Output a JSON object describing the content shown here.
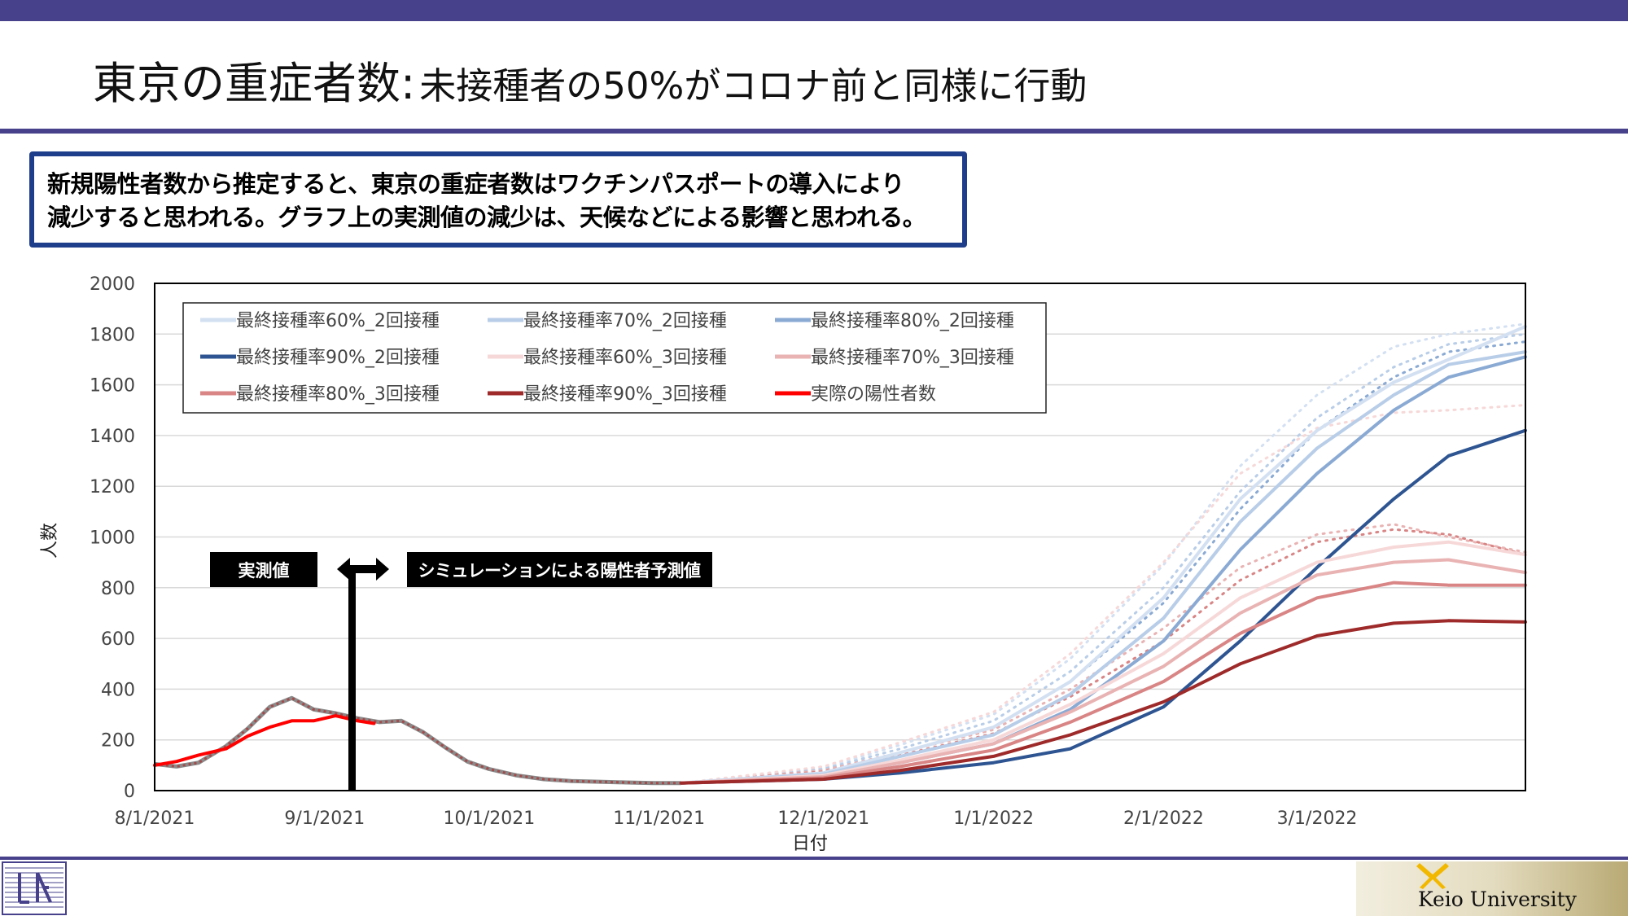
{
  "slide": {
    "title_main": "東京の重症者数:",
    "title_sub": "未接種者の50%がコロナ前と同様に行動",
    "callout_line1": "新規陽性者数から推定すると、東京の重症者数はワクチンパスポートの導入により",
    "callout_line2": "減少すると思われる。グラフ上の実測値の減少は、天候などによる影響と思われる。",
    "label_measured": "実測値",
    "label_simulated": "シミュレーションによる陽性者予測値",
    "footer_brand": "Keio University"
  },
  "colors": {
    "band": "#46418a",
    "callout_border": "#1e3d8a",
    "actual": "#ff0000"
  },
  "chart_data": {
    "type": "line",
    "title": "",
    "xlabel": "日付",
    "ylabel": "人数",
    "ylim": [
      0,
      2000
    ],
    "yticks": [
      0,
      200,
      400,
      600,
      800,
      1000,
      1200,
      1400,
      1600,
      1800,
      2000
    ],
    "xlim": [
      "2021-08-01",
      "2022-04-08"
    ],
    "xticks": [
      {
        "date": "2021-08-01",
        "label": "8/1/2021"
      },
      {
        "date": "2021-09-01",
        "label": "9/1/2021"
      },
      {
        "date": "2021-10-01",
        "label": "10/1/2021"
      },
      {
        "date": "2021-11-01",
        "label": "11/1/2021"
      },
      {
        "date": "2021-12-01",
        "label": "12/1/2021"
      },
      {
        "date": "2022-01-01",
        "label": "1/1/2022"
      },
      {
        "date": "2022-02-01",
        "label": "2/1/2022"
      },
      {
        "date": "2022-03-01",
        "label": "3/1/2022"
      }
    ],
    "grid": true,
    "legend_position": "top-left",
    "divider_date": "2021-09-06",
    "history": [
      [
        "2021-08-01",
        105
      ],
      [
        "2021-08-05",
        95
      ],
      [
        "2021-08-09",
        110
      ],
      [
        "2021-08-14",
        175
      ],
      [
        "2021-08-18",
        245
      ],
      [
        "2021-08-22",
        330
      ],
      [
        "2021-08-26",
        365
      ],
      [
        "2021-08-30",
        320
      ],
      [
        "2021-09-03",
        305
      ],
      [
        "2021-09-07",
        285
      ],
      [
        "2021-09-11",
        270
      ],
      [
        "2021-09-15",
        275
      ],
      [
        "2021-09-19",
        230
      ],
      [
        "2021-09-23",
        170
      ],
      [
        "2021-09-27",
        115
      ],
      [
        "2021-10-01",
        85
      ],
      [
        "2021-10-06",
        60
      ],
      [
        "2021-10-11",
        45
      ],
      [
        "2021-10-16",
        38
      ],
      [
        "2021-10-21",
        35
      ],
      [
        "2021-10-26",
        32
      ],
      [
        "2021-10-31",
        30
      ],
      [
        "2021-11-05",
        30
      ]
    ],
    "series": [
      {
        "name": "実際の陽性者数",
        "color": "#ff0000",
        "style": "solid",
        "width": 4,
        "points": [
          [
            "2021-08-01",
            100
          ],
          [
            "2021-08-05",
            115
          ],
          [
            "2021-08-09",
            140
          ],
          [
            "2021-08-14",
            165
          ],
          [
            "2021-08-18",
            215
          ],
          [
            "2021-08-22",
            250
          ],
          [
            "2021-08-26",
            275
          ],
          [
            "2021-08-30",
            275
          ],
          [
            "2021-09-03",
            295
          ],
          [
            "2021-09-07",
            275
          ],
          [
            "2021-09-10",
            265
          ]
        ]
      },
      {
        "name": "最終接種率60%_2回接種",
        "color": "#d3e0f2",
        "style": "solid",
        "width": 4,
        "points": [
          [
            "2021-12-01",
            70
          ],
          [
            "2021-12-15",
            150
          ],
          [
            "2022-01-01",
            250
          ],
          [
            "2022-01-15",
            430
          ],
          [
            "2022-02-01",
            760
          ],
          [
            "2022-02-15",
            1150
          ],
          [
            "2022-03-01",
            1420
          ],
          [
            "2022-03-15",
            1610
          ],
          [
            "2022-03-25",
            1700
          ],
          [
            "2022-04-08",
            1830
          ]
        ]
      },
      {
        "name": "最終接種率70%_2回接種",
        "color": "#b8cde8",
        "style": "solid",
        "width": 4,
        "points": [
          [
            "2021-12-01",
            65
          ],
          [
            "2021-12-15",
            135
          ],
          [
            "2022-01-01",
            220
          ],
          [
            "2022-01-15",
            380
          ],
          [
            "2022-02-01",
            680
          ],
          [
            "2022-02-15",
            1060
          ],
          [
            "2022-03-01",
            1350
          ],
          [
            "2022-03-15",
            1560
          ],
          [
            "2022-03-25",
            1680
          ],
          [
            "2022-04-08",
            1730
          ]
        ]
      },
      {
        "name": "最終接種率80%_2回接種",
        "color": "#8aaad4",
        "style": "solid",
        "width": 4,
        "points": [
          [
            "2021-12-01",
            55
          ],
          [
            "2021-12-15",
            110
          ],
          [
            "2022-01-01",
            185
          ],
          [
            "2022-01-15",
            320
          ],
          [
            "2022-02-01",
            590
          ],
          [
            "2022-02-15",
            950
          ],
          [
            "2022-03-01",
            1250
          ],
          [
            "2022-03-15",
            1500
          ],
          [
            "2022-03-25",
            1630
          ],
          [
            "2022-04-08",
            1710
          ]
        ]
      },
      {
        "name": "最終接種率90%_2回接種",
        "color": "#2e5591",
        "style": "solid",
        "width": 4,
        "points": [
          [
            "2021-12-01",
            45
          ],
          [
            "2021-12-15",
            70
          ],
          [
            "2022-01-01",
            110
          ],
          [
            "2022-01-15",
            165
          ],
          [
            "2022-02-01",
            330
          ],
          [
            "2022-02-15",
            590
          ],
          [
            "2022-03-01",
            880
          ],
          [
            "2022-03-15",
            1150
          ],
          [
            "2022-03-25",
            1320
          ],
          [
            "2022-04-08",
            1420
          ]
        ]
      },
      {
        "name": "最終接種率60%_3回接種",
        "color": "#f7d8d8",
        "style": "solid",
        "width": 4,
        "points": [
          [
            "2021-12-01",
            60
          ],
          [
            "2021-12-15",
            120
          ],
          [
            "2022-01-01",
            200
          ],
          [
            "2022-01-15",
            340
          ],
          [
            "2022-02-01",
            540
          ],
          [
            "2022-02-15",
            760
          ],
          [
            "2022-03-01",
            900
          ],
          [
            "2022-03-15",
            960
          ],
          [
            "2022-03-25",
            980
          ],
          [
            "2022-04-08",
            930
          ]
        ]
      },
      {
        "name": "最終接種率70%_3回接種",
        "color": "#e9b3b3",
        "style": "solid",
        "width": 4,
        "points": [
          [
            "2021-12-01",
            55
          ],
          [
            "2021-12-15",
            110
          ],
          [
            "2022-01-01",
            185
          ],
          [
            "2022-01-15",
            310
          ],
          [
            "2022-02-01",
            490
          ],
          [
            "2022-02-15",
            700
          ],
          [
            "2022-03-01",
            850
          ],
          [
            "2022-03-15",
            900
          ],
          [
            "2022-03-25",
            910
          ],
          [
            "2022-04-08",
            860
          ]
        ]
      },
      {
        "name": "最終接種率80%_3回接種",
        "color": "#d98585",
        "style": "solid",
        "width": 4,
        "points": [
          [
            "2021-12-01",
            50
          ],
          [
            "2021-12-15",
            95
          ],
          [
            "2022-01-01",
            160
          ],
          [
            "2022-01-15",
            270
          ],
          [
            "2022-02-01",
            430
          ],
          [
            "2022-02-15",
            620
          ],
          [
            "2022-03-01",
            760
          ],
          [
            "2022-03-15",
            820
          ],
          [
            "2022-03-25",
            810
          ],
          [
            "2022-04-08",
            810
          ]
        ]
      },
      {
        "name": "最終接種率90%_3回接種",
        "color": "#9e2a2a",
        "style": "solid",
        "width": 4,
        "points": [
          [
            "2021-12-01",
            45
          ],
          [
            "2021-12-15",
            80
          ],
          [
            "2022-01-01",
            135
          ],
          [
            "2022-01-15",
            220
          ],
          [
            "2022-02-01",
            350
          ],
          [
            "2022-02-15",
            500
          ],
          [
            "2022-03-01",
            610
          ],
          [
            "2022-03-15",
            660
          ],
          [
            "2022-03-25",
            670
          ],
          [
            "2022-04-08",
            665
          ]
        ]
      },
      {
        "color": "#d3e0f2",
        "style": "dotted",
        "width": 3,
        "points": [
          [
            "2021-12-01",
            90
          ],
          [
            "2021-12-15",
            180
          ],
          [
            "2022-01-01",
            300
          ],
          [
            "2022-01-15",
            520
          ],
          [
            "2022-02-01",
            890
          ],
          [
            "2022-02-15",
            1280
          ],
          [
            "2022-03-01",
            1560
          ],
          [
            "2022-03-15",
            1750
          ],
          [
            "2022-03-25",
            1800
          ],
          [
            "2022-04-08",
            1840
          ]
        ]
      },
      {
        "color": "#b8cde8",
        "style": "dotted",
        "width": 3,
        "points": [
          [
            "2021-12-01",
            85
          ],
          [
            "2021-12-15",
            165
          ],
          [
            "2022-01-01",
            275
          ],
          [
            "2022-01-15",
            470
          ],
          [
            "2022-02-01",
            800
          ],
          [
            "2022-02-15",
            1180
          ],
          [
            "2022-03-01",
            1470
          ],
          [
            "2022-03-15",
            1670
          ],
          [
            "2022-03-25",
            1760
          ],
          [
            "2022-04-08",
            1800
          ]
        ]
      },
      {
        "color": "#8aaad4",
        "style": "dotted",
        "width": 3,
        "points": [
          [
            "2021-12-01",
            80
          ],
          [
            "2021-12-15",
            150
          ],
          [
            "2022-01-01",
            250
          ],
          [
            "2022-01-15",
            430
          ],
          [
            "2022-02-01",
            740
          ],
          [
            "2022-02-15",
            1110
          ],
          [
            "2022-03-01",
            1420
          ],
          [
            "2022-03-15",
            1630
          ],
          [
            "2022-03-25",
            1730
          ],
          [
            "2022-04-08",
            1770
          ]
        ]
      },
      {
        "color": "#e9b3b3",
        "style": "dotted",
        "width": 3,
        "points": [
          [
            "2021-12-01",
            80
          ],
          [
            "2021-12-15",
            150
          ],
          [
            "2022-01-01",
            240
          ],
          [
            "2022-01-15",
            400
          ],
          [
            "2022-02-01",
            640
          ],
          [
            "2022-02-15",
            880
          ],
          [
            "2022-03-01",
            1010
          ],
          [
            "2022-03-15",
            1050
          ],
          [
            "2022-03-25",
            1000
          ],
          [
            "2022-04-08",
            940
          ]
        ]
      },
      {
        "color": "#d98585",
        "style": "dotted",
        "width": 3,
        "points": [
          [
            "2021-12-01",
            75
          ],
          [
            "2021-12-15",
            140
          ],
          [
            "2022-01-01",
            225
          ],
          [
            "2022-01-15",
            370
          ],
          [
            "2022-02-01",
            590
          ],
          [
            "2022-02-15",
            830
          ],
          [
            "2022-03-01",
            980
          ],
          [
            "2022-03-15",
            1030
          ],
          [
            "2022-03-25",
            1010
          ],
          [
            "2022-04-08",
            930
          ]
        ]
      },
      {
        "color": "#f7d8d8",
        "style": "dotted",
        "width": 3,
        "points": [
          [
            "2021-12-01",
            95
          ],
          [
            "2021-12-15",
            190
          ],
          [
            "2022-01-01",
            310
          ],
          [
            "2022-01-15",
            540
          ],
          [
            "2022-02-01",
            900
          ],
          [
            "2022-02-15",
            1250
          ],
          [
            "2022-03-01",
            1430
          ],
          [
            "2022-03-15",
            1490
          ],
          [
            "2022-03-25",
            1500
          ],
          [
            "2022-04-08",
            1520
          ]
        ]
      }
    ]
  }
}
